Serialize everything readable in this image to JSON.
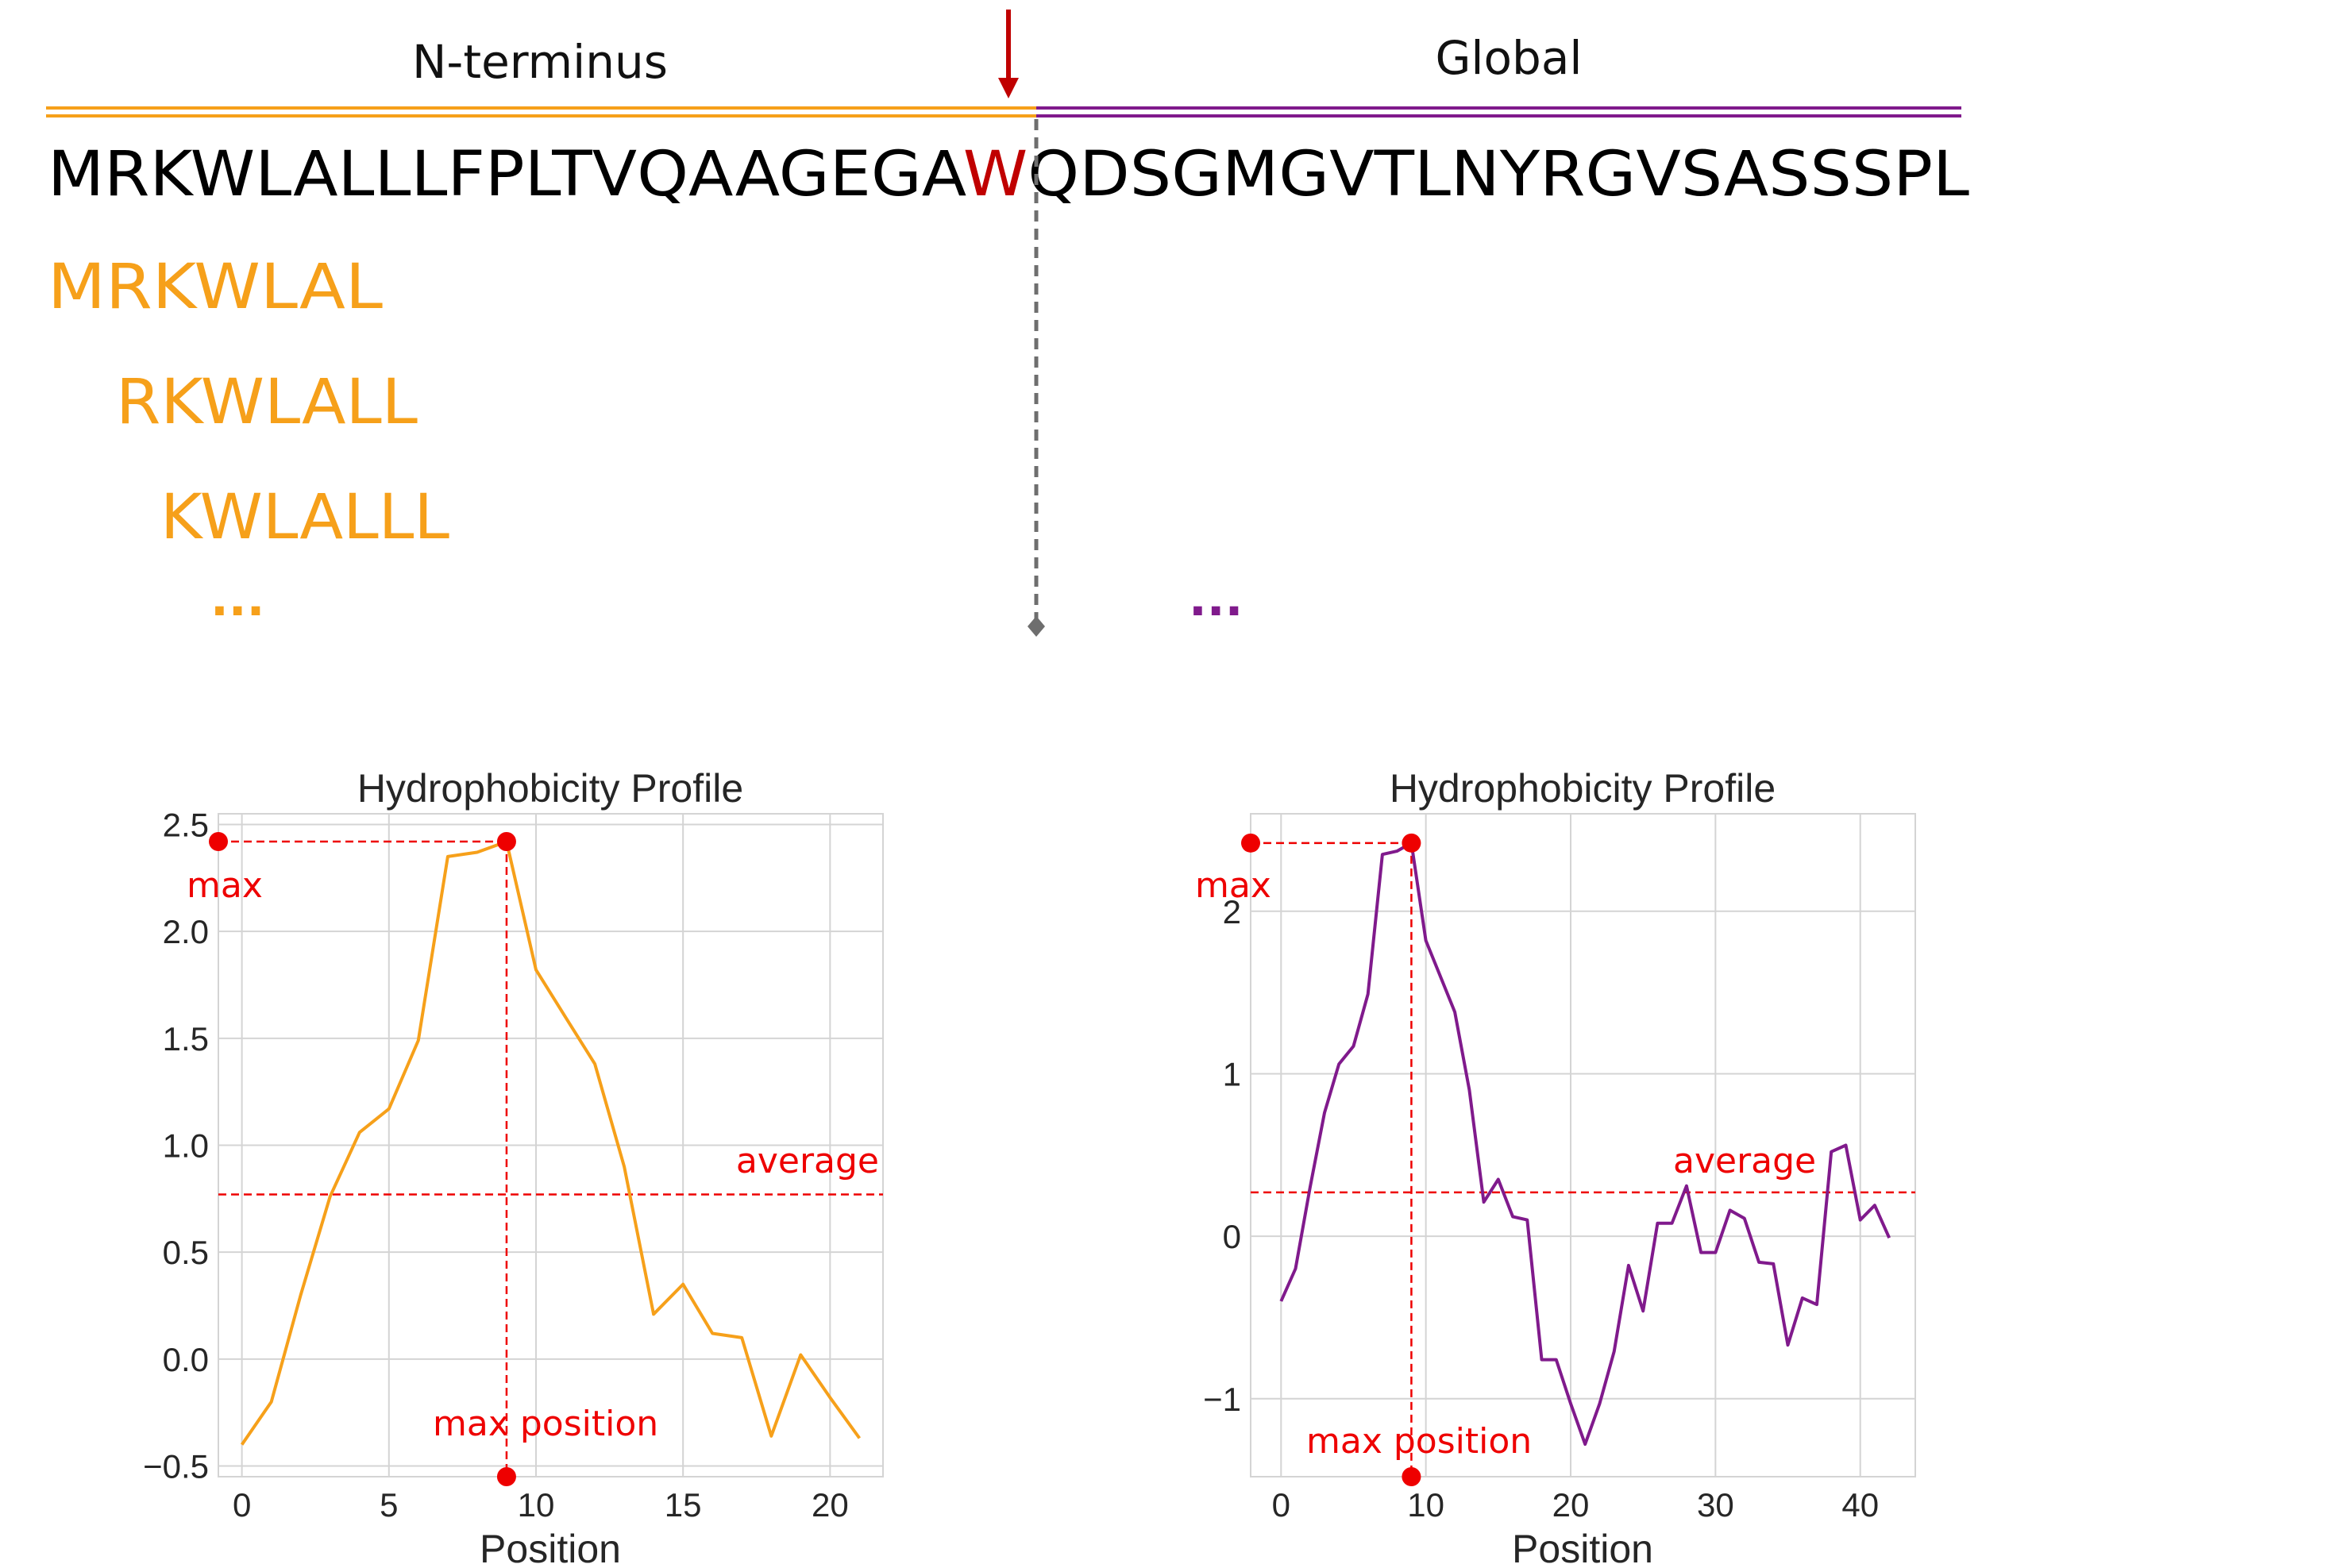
{
  "colors": {
    "nterm": "#f6a01a",
    "global": "#801a8c",
    "highlight": "#c00000",
    "annot": "#ee0000",
    "divider": "#6e6e6e",
    "grid": "#d4d4d4"
  },
  "diagram": {
    "nterm_label": "N-terminus",
    "global_label": "Global",
    "sequence_before": "MRKWLALLLFPLTVQAAGEGA",
    "sequence_highlight": "W",
    "sequence_after": "QDSGMGVTLNYRGVSASSSPL",
    "windows": [
      "MRKWLAL",
      "RKWLALL",
      "KWLALLL"
    ],
    "ellipsis_left": "...",
    "ellipsis_right": "..."
  },
  "annotations": {
    "max": "max",
    "average": "average",
    "max_position": "max position"
  },
  "chart_data": [
    {
      "type": "line",
      "title": "Hydrophobicity Profile",
      "xlabel": "Position",
      "ylabel": "",
      "color": "nterm",
      "xlim": [
        -0.8,
        21.8
      ],
      "ylim": [
        -0.55,
        2.55
      ],
      "xticks": [
        0,
        5,
        10,
        15,
        20
      ],
      "yticks": [
        -0.5,
        0.0,
        0.5,
        1.0,
        1.5,
        2.0,
        2.5
      ],
      "ytick_labels": [
        "−0.5",
        "0.0",
        "0.5",
        "1.0",
        "1.5",
        "2.0",
        "2.5"
      ],
      "grid": true,
      "x": [
        0,
        1,
        2,
        3,
        4,
        5,
        6,
        7,
        8,
        9,
        10,
        11,
        12,
        13,
        14,
        15,
        16,
        17,
        18,
        19,
        20,
        21
      ],
      "values": [
        -0.4,
        -0.2,
        0.3,
        0.76,
        1.06,
        1.17,
        1.49,
        2.35,
        2.37,
        2.42,
        1.82,
        1.6,
        1.38,
        0.9,
        0.21,
        0.35,
        0.12,
        0.1,
        -0.36,
        0.02,
        -0.18,
        -0.37
      ],
      "max_value": 2.42,
      "max_position": 9,
      "average": 0.77
    },
    {
      "type": "line",
      "title": "Hydrophobicity Profile",
      "xlabel": "Position",
      "ylabel": "",
      "color": "global",
      "xlim": [
        -2.1,
        43.8
      ],
      "ylim": [
        -1.48,
        2.6
      ],
      "xticks": [
        0,
        10,
        20,
        30,
        40
      ],
      "yticks": [
        -1,
        0,
        1,
        2
      ],
      "ytick_labels": [
        "−1",
        "0",
        "1",
        "2"
      ],
      "grid": true,
      "x": [
        0,
        1,
        2,
        3,
        4,
        5,
        6,
        7,
        8,
        9,
        10,
        11,
        12,
        13,
        14,
        15,
        16,
        17,
        18,
        19,
        20,
        21,
        22,
        23,
        24,
        25,
        26,
        27,
        28,
        29,
        30,
        31,
        32,
        33,
        34,
        35,
        36,
        37,
        38,
        39,
        40,
        41,
        42
      ],
      "values": [
        -0.4,
        -0.2,
        0.3,
        0.76,
        1.06,
        1.17,
        1.49,
        2.35,
        2.37,
        2.42,
        1.82,
        1.6,
        1.38,
        0.9,
        0.21,
        0.35,
        0.12,
        0.1,
        -0.76,
        -0.76,
        -1.03,
        -1.28,
        -1.03,
        -0.71,
        -0.18,
        -0.46,
        0.08,
        0.08,
        0.31,
        -0.1,
        -0.1,
        0.16,
        0.11,
        -0.16,
        -0.17,
        -0.67,
        -0.38,
        -0.42,
        0.52,
        0.56,
        0.1,
        0.19,
        -0.01
      ],
      "max_value": 2.42,
      "max_position": 9,
      "average": 0.27
    }
  ]
}
